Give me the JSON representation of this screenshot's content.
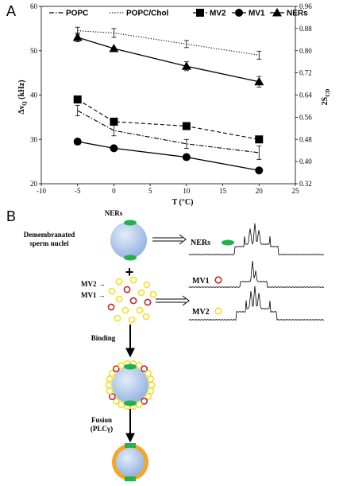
{
  "panels": {
    "a": "A",
    "b": "B"
  },
  "chart_data": {
    "type": "line",
    "xlabel": "T (°C)",
    "ylabel": "Δν",
    "ylabel_sub": "Q",
    "ylabel_unit": " (kHz)",
    "y2label": "2S",
    "y2label_sub": "CD",
    "xlim": [
      -10,
      25
    ],
    "ylim": [
      20,
      60
    ],
    "y2lim": [
      0.32,
      0.96
    ],
    "xticks": [
      "-10",
      "-5",
      "0",
      "5",
      "10",
      "15",
      "20",
      "25"
    ],
    "yticks": [
      "20",
      "30",
      "40",
      "50",
      "60"
    ],
    "y2ticks": [
      "0.32",
      "0.40",
      "0.48",
      "0.56",
      "0.64",
      "0.72",
      "0.80",
      "0.88",
      "0.96"
    ],
    "legend_position": "top",
    "x": [
      -5,
      0,
      10,
      20
    ],
    "series": [
      {
        "name": "POPC",
        "values": [
          36.5,
          32,
          29,
          27
        ],
        "errors": [
          1.2,
          1.2,
          1.0,
          1.5
        ],
        "style": "dashdot",
        "marker": "none"
      },
      {
        "name": "POPC/Chol",
        "values": [
          54.5,
          54,
          51.5,
          49
        ],
        "errors": [
          0.8,
          1.0,
          0.8,
          0.9
        ],
        "style": "dotted",
        "marker": "none"
      },
      {
        "name": "MV2",
        "values": [
          39,
          34,
          33,
          30
        ],
        "errors": [
          0,
          0,
          0,
          0
        ],
        "style": "dashed",
        "marker": "square"
      },
      {
        "name": "MV1",
        "values": [
          29.5,
          28,
          26,
          23
        ],
        "errors": [
          0,
          0,
          0,
          0
        ],
        "style": "solid",
        "marker": "circle"
      },
      {
        "name": "NERs",
        "values": [
          53,
          50.5,
          46.5,
          43
        ],
        "errors": [
          1.0,
          0,
          1.0,
          1.2
        ],
        "style": "solid",
        "marker": "triangle"
      }
    ]
  },
  "diagram": {
    "ners_top": "NERs",
    "nuclei_line1": "Demembranated",
    "nuclei_line2": "sperm nuclei",
    "plus": "+",
    "mv2_arrow": "MV2 →",
    "mv1_arrow": "MV1 →",
    "binding": "Binding",
    "fusion": "Fusion",
    "plc": "(PLCγ)",
    "spectrum_ners": "NERs",
    "spectrum_mv1": "MV1",
    "spectrum_mv2": "MV2"
  },
  "colors": {
    "green": "#22b14c",
    "red": "#c0282d",
    "yellow": "#f2e02a",
    "orange": "#f5a623",
    "sphere": "#aac4e8"
  }
}
